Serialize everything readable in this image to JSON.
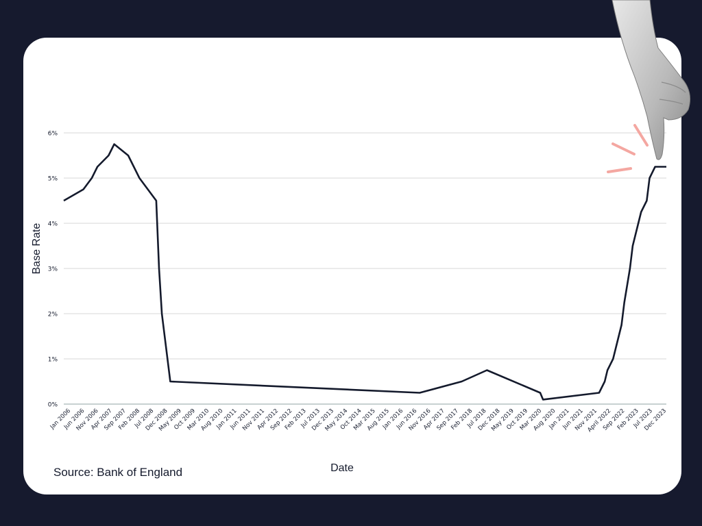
{
  "source_label": "Source: Bank of England",
  "colors": {
    "background": "#161a2e",
    "card": "#ffffff",
    "line": "#141a2c",
    "grid": "#d7d7d7",
    "accent": "#f4a7a1"
  },
  "icons": {
    "pointer": "pointing-hand-icon",
    "emphasis": "emphasis-marks-icon"
  },
  "chart_data": {
    "type": "line",
    "xlabel": "Date",
    "ylabel": "Base Rate",
    "ylim": [
      0,
      6
    ],
    "y_ticks": [
      "0%",
      "1%",
      "2%",
      "3%",
      "4%",
      "5%",
      "6%"
    ],
    "x_ticks": [
      "Jan 2006",
      "Jun 2006",
      "Nov 2006",
      "Apr 2007",
      "Sep 2007",
      "Feb 2008",
      "Jul 2008",
      "Dec 2008",
      "May 2009",
      "Oct 2009",
      "Mar 2010",
      "Aug 2010",
      "Jan 2011",
      "Jun 2011",
      "Nov 2011",
      "Apr 2012",
      "Sep 2012",
      "Feb 2013",
      "Jul 2013",
      "Dec 2013",
      "May 2014",
      "Oct 2014",
      "Mar 2015",
      "Aug 2015",
      "Jan 2016",
      "Jun 2016",
      "Nov 2016",
      "Apr 2017",
      "Sep 2017",
      "Feb 2018",
      "Jul 2018",
      "Dec 2018",
      "May 2019",
      "Oct 2019",
      "Mar 2020",
      "Aug 2020",
      "Jan 2021",
      "Jun 2021",
      "Nov 2021",
      "April 2022",
      "Sep 2022",
      "Feb 2023",
      "Jul 2023",
      "Dec 2023"
    ],
    "grid": true,
    "series": [
      {
        "x": [
          "2006-01",
          "2006-08",
          "2006-11",
          "2007-01",
          "2007-05",
          "2007-07",
          "2007-12",
          "2008-02",
          "2008-04",
          "2008-10",
          "2008-11",
          "2008-12",
          "2009-01",
          "2009-02",
          "2009-03",
          "2016-08",
          "2017-11",
          "2018-08",
          "2020-03",
          "2020-04",
          "2021-12",
          "2022-02",
          "2022-03",
          "2022-05",
          "2022-06",
          "2022-08",
          "2022-09",
          "2022-11",
          "2022-12",
          "2023-02",
          "2023-03",
          "2023-05",
          "2023-06",
          "2023-08",
          "2023-12"
        ],
        "y": [
          4.5,
          4.75,
          5.0,
          5.25,
          5.5,
          5.75,
          5.5,
          5.25,
          5.0,
          4.5,
          3.0,
          2.0,
          1.5,
          1.0,
          0.5,
          0.25,
          0.5,
          0.75,
          0.25,
          0.1,
          0.25,
          0.5,
          0.75,
          1.0,
          1.25,
          1.75,
          2.25,
          3.0,
          3.5,
          4.0,
          4.25,
          4.5,
          5.0,
          5.25,
          5.25
        ]
      }
    ]
  }
}
